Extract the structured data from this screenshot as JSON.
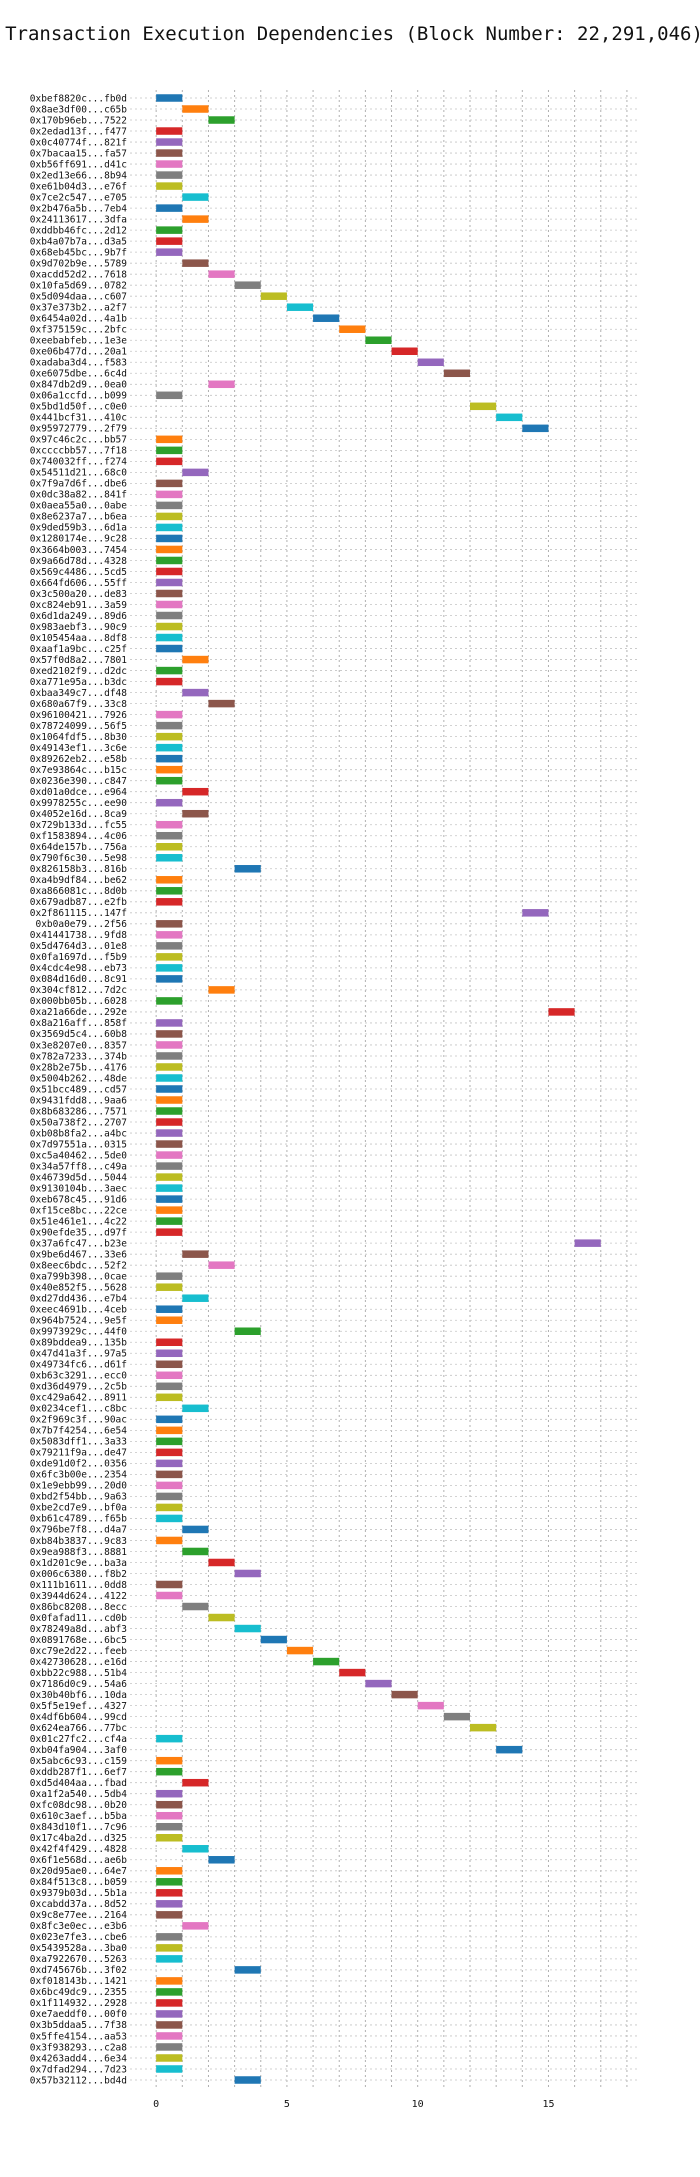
{
  "chart_data": {
    "type": "gantt",
    "title": "Transaction Execution Dependencies (Block Number: 22,291,046)",
    "xlabel": "",
    "ylabel": "",
    "xlim": [
      -1,
      18.5
    ],
    "xticks": [
      0,
      5,
      10,
      15
    ],
    "grid": {
      "x": true,
      "y": true,
      "style": "dotted"
    },
    "transactions": [
      {
        "tx": "0xbef8820c...fb0d",
        "start": 0,
        "color": "#1f77b4"
      },
      {
        "tx": "0x8ae3df00...c65b",
        "start": 1,
        "color": "#ff7f0e"
      },
      {
        "tx": "0x170b96eb...7522",
        "start": 2,
        "color": "#2ca02c"
      },
      {
        "tx": "0x2edad13f...f477",
        "start": 0,
        "color": "#d62728"
      },
      {
        "tx": "0x0c40774f...821f",
        "start": 0,
        "color": "#9467bd"
      },
      {
        "tx": "0x7bacaa15...fa57",
        "start": 0,
        "color": "#8c564b"
      },
      {
        "tx": "0xb56ff691...d41c",
        "start": 0,
        "color": "#e377c2"
      },
      {
        "tx": "0x2ed13e66...8b94",
        "start": 0,
        "color": "#7f7f7f"
      },
      {
        "tx": "0xe61b04d3...e76f",
        "start": 0,
        "color": "#bcbd22"
      },
      {
        "tx": "0x7ce2c547...e705",
        "start": 1,
        "color": "#17becf"
      },
      {
        "tx": "0x2b476a5b...7eb4",
        "start": 0,
        "color": "#1f77b4"
      },
      {
        "tx": "0x24113617...3dfa",
        "start": 1,
        "color": "#ff7f0e"
      },
      {
        "tx": "0xddbb46fc...2d12",
        "start": 0,
        "color": "#2ca02c"
      },
      {
        "tx": "0xb4a07b7a...d3a5",
        "start": 0,
        "color": "#d62728"
      },
      {
        "tx": "0x68eb45bc...9b7f",
        "start": 0,
        "color": "#9467bd"
      },
      {
        "tx": "0x9d702b9e...5789",
        "start": 1,
        "color": "#8c564b"
      },
      {
        "tx": "0xacdd52d2...7618",
        "start": 2,
        "color": "#e377c2"
      },
      {
        "tx": "0x10fa5d69...0782",
        "start": 3,
        "color": "#7f7f7f"
      },
      {
        "tx": "0x5d094daa...c607",
        "start": 4,
        "color": "#bcbd22"
      },
      {
        "tx": "0x37e373b2...a2f7",
        "start": 5,
        "color": "#17becf"
      },
      {
        "tx": "0x6454a02d...4a1b",
        "start": 6,
        "color": "#1f77b4"
      },
      {
        "tx": "0xf375159c...2bfc",
        "start": 7,
        "color": "#ff7f0e"
      },
      {
        "tx": "0xeebabfeb...1e3e",
        "start": 8,
        "color": "#2ca02c"
      },
      {
        "tx": "0xe06b477d...20a1",
        "start": 9,
        "color": "#d62728"
      },
      {
        "tx": "0xadaba3d4...f583",
        "start": 10,
        "color": "#9467bd"
      },
      {
        "tx": "0xe6075dbe...6c4d",
        "start": 11,
        "color": "#8c564b"
      },
      {
        "tx": "0x847db2d9...0ea0",
        "start": 2,
        "color": "#e377c2"
      },
      {
        "tx": "0x06a1ccfd...b099",
        "start": 0,
        "color": "#7f7f7f"
      },
      {
        "tx": "0x5bd1d50f...c0e0",
        "start": 12,
        "color": "#bcbd22"
      },
      {
        "tx": "0x441bcf31...410c",
        "start": 13,
        "color": "#17becf"
      },
      {
        "tx": "0x95972779...2f79",
        "start": 14,
        "color": "#1f77b4"
      },
      {
        "tx": "0x97c46c2c...bb57",
        "start": 0,
        "color": "#ff7f0e"
      },
      {
        "tx": "0xccccbb57...7f18",
        "start": 0,
        "color": "#2ca02c"
      },
      {
        "tx": "0x740032ff...f274",
        "start": 0,
        "color": "#d62728"
      },
      {
        "tx": "0x54511d21...68c0",
        "start": 1,
        "color": "#9467bd"
      },
      {
        "tx": "0x7f9a7d6f...dbe6",
        "start": 0,
        "color": "#8c564b"
      },
      {
        "tx": "0x0dc38a82...841f",
        "start": 0,
        "color": "#e377c2"
      },
      {
        "tx": "0x0aea55a0...0abe",
        "start": 0,
        "color": "#7f7f7f"
      },
      {
        "tx": "0x8e6237a7...b6ea",
        "start": 0,
        "color": "#bcbd22"
      },
      {
        "tx": "0x9ded59b3...6d1a",
        "start": 0,
        "color": "#17becf"
      },
      {
        "tx": "0x1280174e...9c28",
        "start": 0,
        "color": "#1f77b4"
      },
      {
        "tx": "0x3664b003...7454",
        "start": 0,
        "color": "#ff7f0e"
      },
      {
        "tx": "0x9a66d78d...4328",
        "start": 0,
        "color": "#2ca02c"
      },
      {
        "tx": "0x569c4486...5cd5",
        "start": 0,
        "color": "#d62728"
      },
      {
        "tx": "0x664fd606...55ff",
        "start": 0,
        "color": "#9467bd"
      },
      {
        "tx": "0x3c500a20...de83",
        "start": 0,
        "color": "#8c564b"
      },
      {
        "tx": "0xc824eb91...3a59",
        "start": 0,
        "color": "#e377c2"
      },
      {
        "tx": "0x6d1da249...89d6",
        "start": 0,
        "color": "#7f7f7f"
      },
      {
        "tx": "0x983aebf3...90c9",
        "start": 0,
        "color": "#bcbd22"
      },
      {
        "tx": "0x105454aa...8df8",
        "start": 0,
        "color": "#17becf"
      },
      {
        "tx": "0xaaf1a9bc...c25f",
        "start": 0,
        "color": "#1f77b4"
      },
      {
        "tx": "0x57f0d8a2...7801",
        "start": 1,
        "color": "#ff7f0e"
      },
      {
        "tx": "0xed2102f9...d2dc",
        "start": 0,
        "color": "#2ca02c"
      },
      {
        "tx": "0xa771e95a...b3dc",
        "start": 0,
        "color": "#d62728"
      },
      {
        "tx": "0xbaa349c7...df48",
        "start": 1,
        "color": "#9467bd"
      },
      {
        "tx": "0x680a67f9...33c8",
        "start": 2,
        "color": "#8c564b"
      },
      {
        "tx": "0x96100421...7926",
        "start": 0,
        "color": "#e377c2"
      },
      {
        "tx": "0x78724099...56f5",
        "start": 0,
        "color": "#7f7f7f"
      },
      {
        "tx": "0x1064fdf5...8b30",
        "start": 0,
        "color": "#bcbd22"
      },
      {
        "tx": "0x49143ef1...3c6e",
        "start": 0,
        "color": "#17becf"
      },
      {
        "tx": "0x89262eb2...e58b",
        "start": 0,
        "color": "#1f77b4"
      },
      {
        "tx": "0x7e93864c...b15c",
        "start": 0,
        "color": "#ff7f0e"
      },
      {
        "tx": "0x0236e390...c847",
        "start": 0,
        "color": "#2ca02c"
      },
      {
        "tx": "0xd01a0dce...e964",
        "start": 1,
        "color": "#d62728"
      },
      {
        "tx": "0x9978255c...ee90",
        "start": 0,
        "color": "#9467bd"
      },
      {
        "tx": "0x4052e16d...8ca9",
        "start": 1,
        "color": "#8c564b"
      },
      {
        "tx": "0x729b133d...fc55",
        "start": 0,
        "color": "#e377c2"
      },
      {
        "tx": "0xf1583894...4c06",
        "start": 0,
        "color": "#7f7f7f"
      },
      {
        "tx": "0x64de157b...756a",
        "start": 0,
        "color": "#bcbd22"
      },
      {
        "tx": "0x790f6c30...5e98",
        "start": 0,
        "color": "#17becf"
      },
      {
        "tx": "0x826158b3...816b",
        "start": 3,
        "color": "#1f77b4"
      },
      {
        "tx": "0xa4b9df84...be62",
        "start": 0,
        "color": "#ff7f0e"
      },
      {
        "tx": "0xa866081c...8d0b",
        "start": 0,
        "color": "#2ca02c"
      },
      {
        "tx": "0x679adb87...e2fb",
        "start": 0,
        "color": "#d62728"
      },
      {
        "tx": "0x2f861115...147f",
        "start": 14,
        "color": "#9467bd"
      },
      {
        "tx": "0xb0a0e79...2f56",
        "start": 0,
        "color": "#8c564b"
      },
      {
        "tx": "0x41441738...9fd8",
        "start": 0,
        "color": "#e377c2"
      },
      {
        "tx": "0x5d4764d3...01e8",
        "start": 0,
        "color": "#7f7f7f"
      },
      {
        "tx": "0x0fa1697d...f5b9",
        "start": 0,
        "color": "#bcbd22"
      },
      {
        "tx": "0x4cdc4e98...eb73",
        "start": 0,
        "color": "#17becf"
      },
      {
        "tx": "0x084d16d0...8c91",
        "start": 0,
        "color": "#1f77b4"
      },
      {
        "tx": "0x304cf812...7d2c",
        "start": 2,
        "color": "#ff7f0e"
      },
      {
        "tx": "0x000bb05b...6028",
        "start": 0,
        "color": "#2ca02c"
      },
      {
        "tx": "0xa21a66de...292e",
        "start": 15,
        "color": "#d62728"
      },
      {
        "tx": "0x8a216aff...858f",
        "start": 0,
        "color": "#9467bd"
      },
      {
        "tx": "0x3569d5c4...60b8",
        "start": 0,
        "color": "#8c564b"
      },
      {
        "tx": "0x3e8207e0...8357",
        "start": 0,
        "color": "#e377c2"
      },
      {
        "tx": "0x782a7233...374b",
        "start": 0,
        "color": "#7f7f7f"
      },
      {
        "tx": "0x28b2e75b...4176",
        "start": 0,
        "color": "#bcbd22"
      },
      {
        "tx": "0x5004b262...48de",
        "start": 0,
        "color": "#17becf"
      },
      {
        "tx": "0x51bcc489...cd57",
        "start": 0,
        "color": "#1f77b4"
      },
      {
        "tx": "0x9431fdd8...9aa6",
        "start": 0,
        "color": "#ff7f0e"
      },
      {
        "tx": "0x8b683286...7571",
        "start": 0,
        "color": "#2ca02c"
      },
      {
        "tx": "0x50a738f2...2707",
        "start": 0,
        "color": "#d62728"
      },
      {
        "tx": "0xb08b8fa2...a4bc",
        "start": 0,
        "color": "#9467bd"
      },
      {
        "tx": "0x7d97551a...0315",
        "start": 0,
        "color": "#8c564b"
      },
      {
        "tx": "0xc5a40462...5de0",
        "start": 0,
        "color": "#e377c2"
      },
      {
        "tx": "0x34a57ff8...c49a",
        "start": 0,
        "color": "#7f7f7f"
      },
      {
        "tx": "0x46739d5d...5044",
        "start": 0,
        "color": "#bcbd22"
      },
      {
        "tx": "0x9130104b...3aec",
        "start": 0,
        "color": "#17becf"
      },
      {
        "tx": "0xeb678c45...91d6",
        "start": 0,
        "color": "#1f77b4"
      },
      {
        "tx": "0xf15ce8bc...22ce",
        "start": 0,
        "color": "#ff7f0e"
      },
      {
        "tx": "0x51e461e1...4c22",
        "start": 0,
        "color": "#2ca02c"
      },
      {
        "tx": "0x90efde35...d97f",
        "start": 0,
        "color": "#d62728"
      },
      {
        "tx": "0x37a6fc47...b23e",
        "start": 16,
        "color": "#9467bd"
      },
      {
        "tx": "0x9be6d467...33e6",
        "start": 1,
        "color": "#8c564b"
      },
      {
        "tx": "0x8eec6bdc...52f2",
        "start": 2,
        "color": "#e377c2"
      },
      {
        "tx": "0xa799b398...0cae",
        "start": 0,
        "color": "#7f7f7f"
      },
      {
        "tx": "0x40e852f5...5628",
        "start": 0,
        "color": "#bcbd22"
      },
      {
        "tx": "0xd27dd436...e7b4",
        "start": 1,
        "color": "#17becf"
      },
      {
        "tx": "0xeec4691b...4ceb",
        "start": 0,
        "color": "#1f77b4"
      },
      {
        "tx": "0x964b7524...9e5f",
        "start": 0,
        "color": "#ff7f0e"
      },
      {
        "tx": "0x9973929c...44f0",
        "start": 3,
        "color": "#2ca02c"
      },
      {
        "tx": "0x89bddea9...135b",
        "start": 0,
        "color": "#d62728"
      },
      {
        "tx": "0x47d41a3f...97a5",
        "start": 0,
        "color": "#9467bd"
      },
      {
        "tx": "0x49734fc6...d61f",
        "start": 0,
        "color": "#8c564b"
      },
      {
        "tx": "0xb63c3291...ecc0",
        "start": 0,
        "color": "#e377c2"
      },
      {
        "tx": "0xd36d4979...2c5b",
        "start": 0,
        "color": "#7f7f7f"
      },
      {
        "tx": "0xc429a642...8911",
        "start": 0,
        "color": "#bcbd22"
      },
      {
        "tx": "0x0234cef1...c8bc",
        "start": 1,
        "color": "#17becf"
      },
      {
        "tx": "0x2f969c3f...90ac",
        "start": 0,
        "color": "#1f77b4"
      },
      {
        "tx": "0x7b7f4254...6e54",
        "start": 0,
        "color": "#ff7f0e"
      },
      {
        "tx": "0x5083dff1...3a33",
        "start": 0,
        "color": "#2ca02c"
      },
      {
        "tx": "0x79211f9a...de47",
        "start": 0,
        "color": "#d62728"
      },
      {
        "tx": "0xde91d0f2...0356",
        "start": 0,
        "color": "#9467bd"
      },
      {
        "tx": "0x6fc3b00e...2354",
        "start": 0,
        "color": "#8c564b"
      },
      {
        "tx": "0x1e9ebb99...20d0",
        "start": 0,
        "color": "#e377c2"
      },
      {
        "tx": "0xbd2f54bb...9a63",
        "start": 0,
        "color": "#7f7f7f"
      },
      {
        "tx": "0xbe2cd7e9...bf0a",
        "start": 0,
        "color": "#bcbd22"
      },
      {
        "tx": "0xb61c4789...f65b",
        "start": 0,
        "color": "#17becf"
      },
      {
        "tx": "0x796be7f8...d4a7",
        "start": 1,
        "color": "#1f77b4"
      },
      {
        "tx": "0xb84b3837...9c83",
        "start": 0,
        "color": "#ff7f0e"
      },
      {
        "tx": "0x9ea988f3...8881",
        "start": 1,
        "color": "#2ca02c"
      },
      {
        "tx": "0x1d201c9e...ba3a",
        "start": 2,
        "color": "#d62728"
      },
      {
        "tx": "0x006c6380...f8b2",
        "start": 3,
        "color": "#9467bd"
      },
      {
        "tx": "0x111b1611...0dd8",
        "start": 0,
        "color": "#8c564b"
      },
      {
        "tx": "0x3944d624...4122",
        "start": 0,
        "color": "#e377c2"
      },
      {
        "tx": "0x86bc8208...8ecc",
        "start": 1,
        "color": "#7f7f7f"
      },
      {
        "tx": "0x0fafad11...cd0b",
        "start": 2,
        "color": "#bcbd22"
      },
      {
        "tx": "0x78249a8d...abf3",
        "start": 3,
        "color": "#17becf"
      },
      {
        "tx": "0x0891768e...6bc5",
        "start": 4,
        "color": "#1f77b4"
      },
      {
        "tx": "0xc79e2d22...feeb",
        "start": 5,
        "color": "#ff7f0e"
      },
      {
        "tx": "0x42730628...e16d",
        "start": 6,
        "color": "#2ca02c"
      },
      {
        "tx": "0xbb22c988...51b4",
        "start": 7,
        "color": "#d62728"
      },
      {
        "tx": "0x7186d0c9...54a6",
        "start": 8,
        "color": "#9467bd"
      },
      {
        "tx": "0x30b40bf6...10da",
        "start": 9,
        "color": "#8c564b"
      },
      {
        "tx": "0x5f5e19ef...4327",
        "start": 10,
        "color": "#e377c2"
      },
      {
        "tx": "0x4df6b604...99cd",
        "start": 11,
        "color": "#7f7f7f"
      },
      {
        "tx": "0x624ea766...77bc",
        "start": 12,
        "color": "#bcbd22"
      },
      {
        "tx": "0x01c27fc2...cf4a",
        "start": 0,
        "color": "#17becf"
      },
      {
        "tx": "0xb04fa904...3af0",
        "start": 13,
        "color": "#1f77b4"
      },
      {
        "tx": "0x5abc6c93...c159",
        "start": 0,
        "color": "#ff7f0e"
      },
      {
        "tx": "0xddb287f1...6ef7",
        "start": 0,
        "color": "#2ca02c"
      },
      {
        "tx": "0xd5d404aa...fbad",
        "start": 1,
        "color": "#d62728"
      },
      {
        "tx": "0xa1f2a540...5db4",
        "start": 0,
        "color": "#9467bd"
      },
      {
        "tx": "0xfc08dc98...0b20",
        "start": 0,
        "color": "#8c564b"
      },
      {
        "tx": "0x610c3aef...b5ba",
        "start": 0,
        "color": "#e377c2"
      },
      {
        "tx": "0x843d10f1...7c96",
        "start": 0,
        "color": "#7f7f7f"
      },
      {
        "tx": "0x17c4ba2d...d325",
        "start": 0,
        "color": "#bcbd22"
      },
      {
        "tx": "0x42f4f429...4828",
        "start": 1,
        "color": "#17becf"
      },
      {
        "tx": "0x6f1e568d...ae6b",
        "start": 2,
        "color": "#1f77b4"
      },
      {
        "tx": "0x20d95ae0...64e7",
        "start": 0,
        "color": "#ff7f0e"
      },
      {
        "tx": "0x84f513c8...b059",
        "start": 0,
        "color": "#2ca02c"
      },
      {
        "tx": "0x9379b03d...5b1a",
        "start": 0,
        "color": "#d62728"
      },
      {
        "tx": "0xcabdd37a...8d52",
        "start": 0,
        "color": "#9467bd"
      },
      {
        "tx": "0x9c8e77ee...2164",
        "start": 0,
        "color": "#8c564b"
      },
      {
        "tx": "0x8fc3e0ec...e3b6",
        "start": 1,
        "color": "#e377c2"
      },
      {
        "tx": "0x023e7fe3...cbe6",
        "start": 0,
        "color": "#7f7f7f"
      },
      {
        "tx": "0x5439528a...3ba0",
        "start": 0,
        "color": "#bcbd22"
      },
      {
        "tx": "0xa7922670...5263",
        "start": 0,
        "color": "#17becf"
      },
      {
        "tx": "0xd745676b...3f02",
        "start": 3,
        "color": "#1f77b4"
      },
      {
        "tx": "0xf018143b...1421",
        "start": 0,
        "color": "#ff7f0e"
      },
      {
        "tx": "0x6bc49dc9...2355",
        "start": 0,
        "color": "#2ca02c"
      },
      {
        "tx": "0x1f114932...2928",
        "start": 0,
        "color": "#d62728"
      },
      {
        "tx": "0xe7aeddf0...00f0",
        "start": 0,
        "color": "#9467bd"
      },
      {
        "tx": "0x3b5ddaa5...7f38",
        "start": 0,
        "color": "#8c564b"
      },
      {
        "tx": "0x5ffe4154...aa53",
        "start": 0,
        "color": "#e377c2"
      },
      {
        "tx": "0x3f938293...c2a8",
        "start": 0,
        "color": "#7f7f7f"
      },
      {
        "tx": "0x4263add4...6e34",
        "start": 0,
        "color": "#bcbd22"
      },
      {
        "tx": "0x7dfad294...7d23",
        "start": 0,
        "color": "#17becf"
      },
      {
        "tx": "0x57b32112...bd4d",
        "start": 3,
        "color": "#1f77b4"
      }
    ]
  }
}
